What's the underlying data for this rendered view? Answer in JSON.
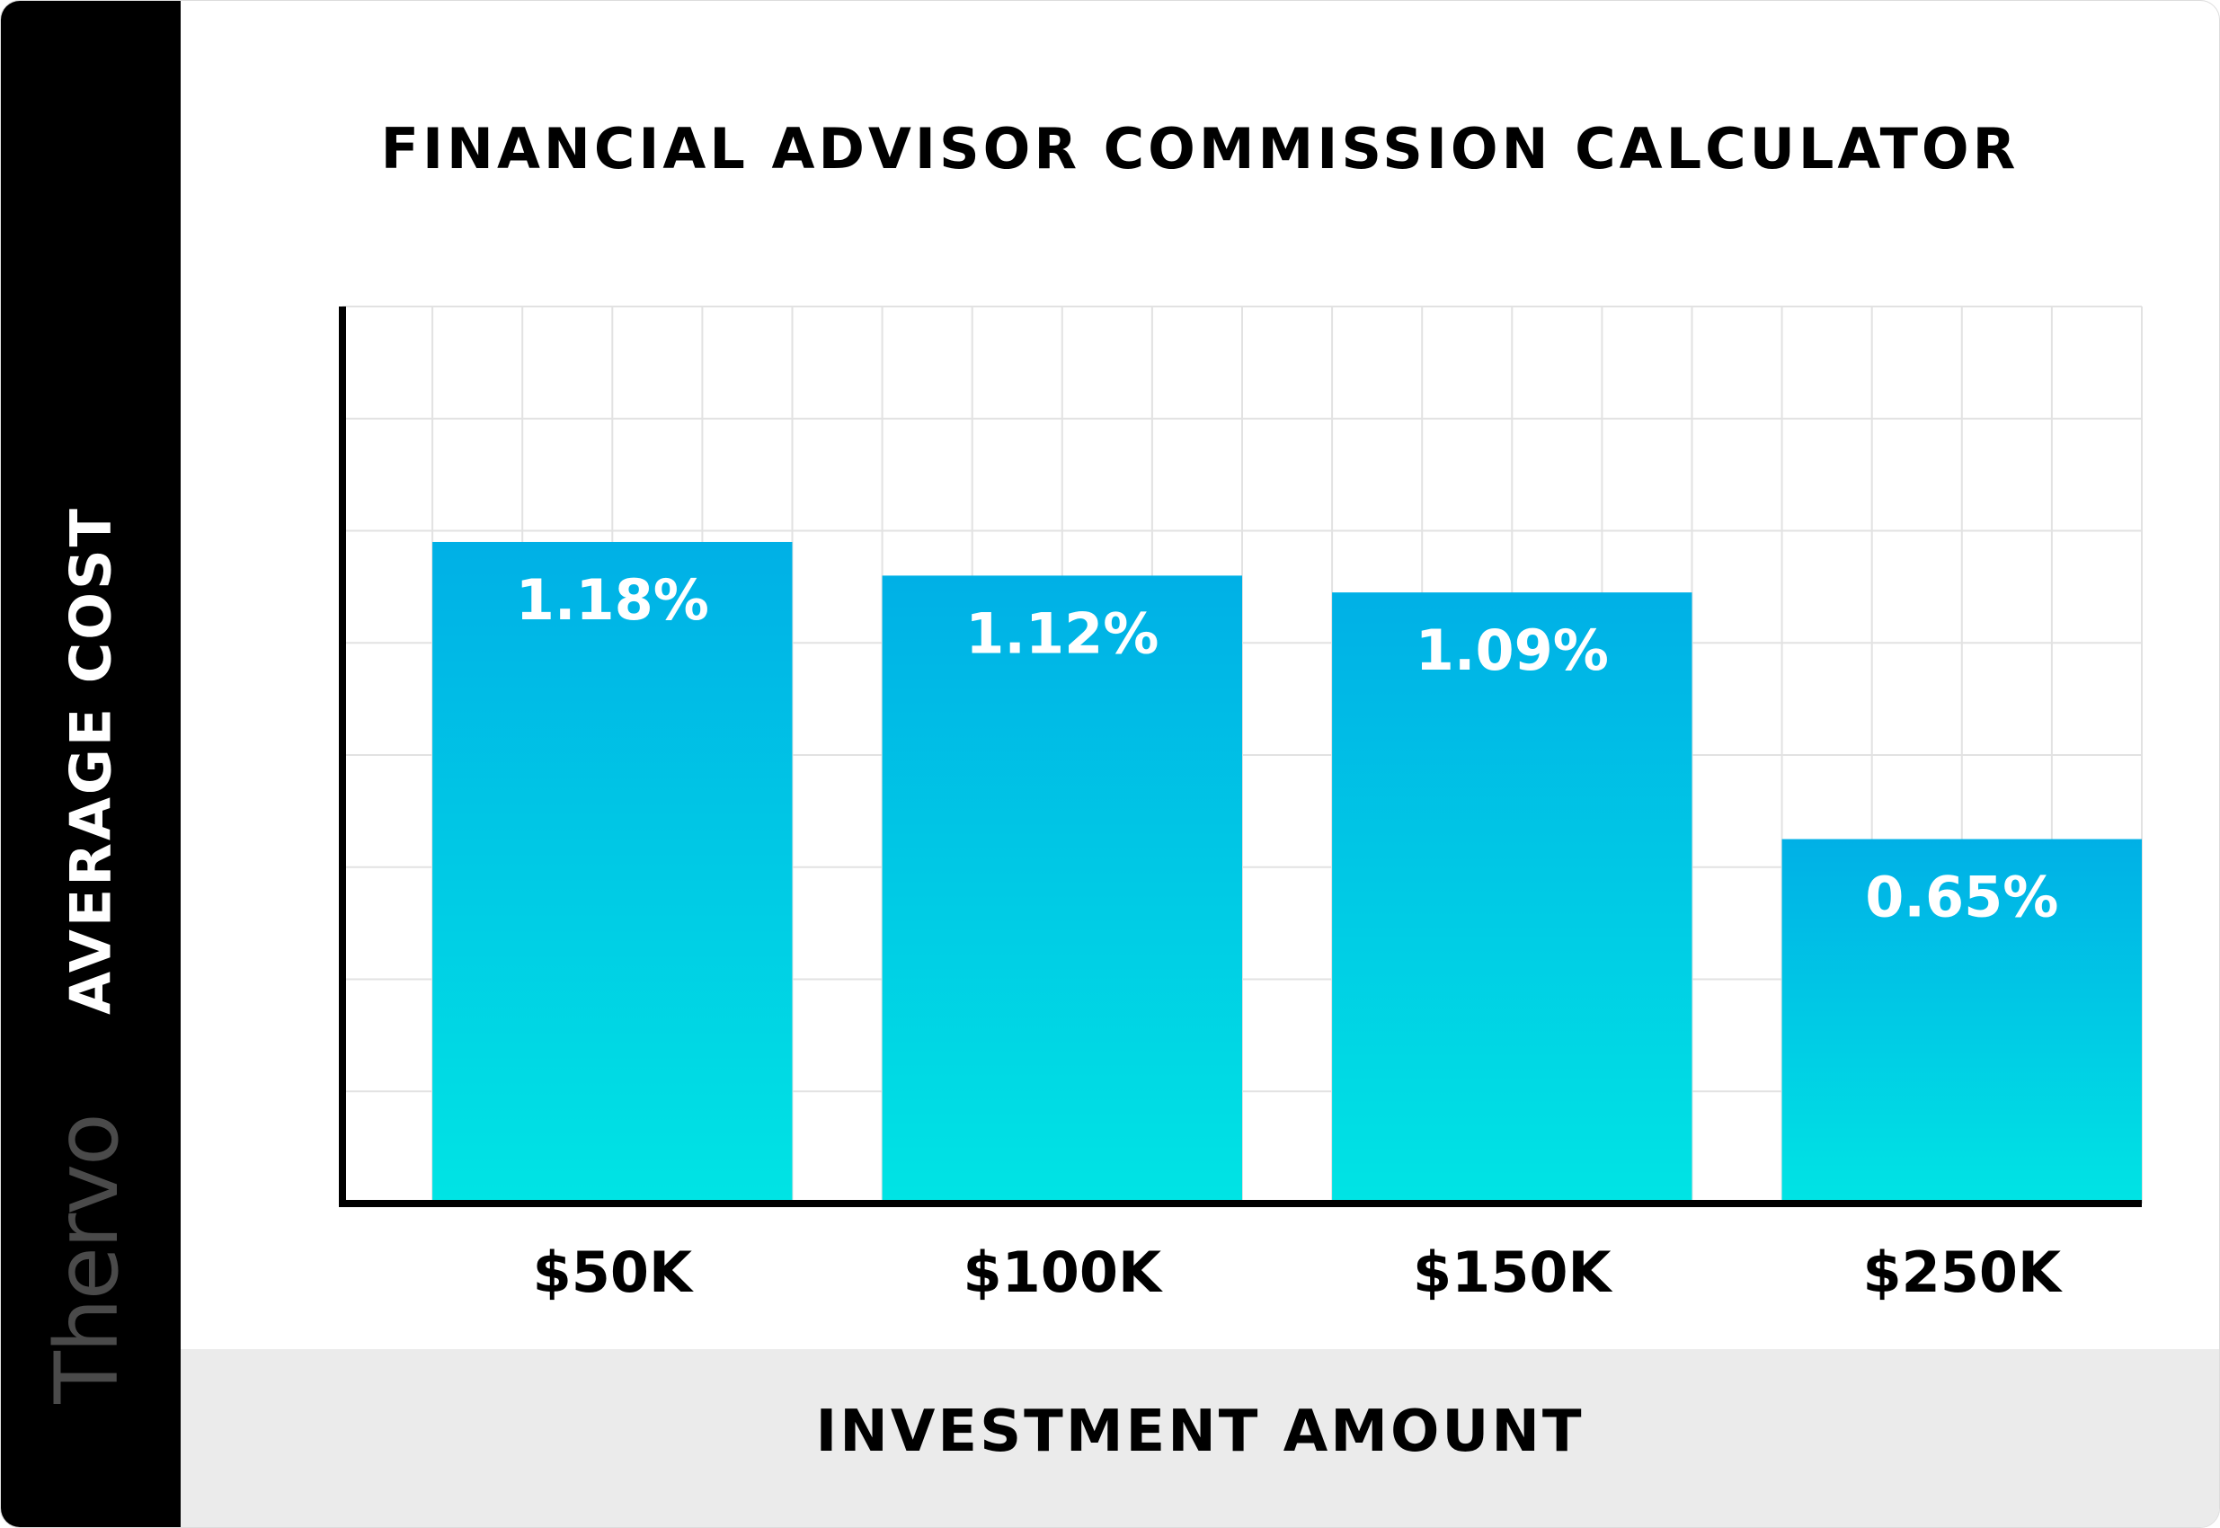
{
  "brand": "Thervo",
  "colors": {
    "bar_top": "#00b0e6",
    "bar_bottom": "#00e4e4",
    "grid": "#e2e2e2",
    "axis": "#000000",
    "side_strip": "#000000",
    "footer_band": "#ebebeb"
  },
  "chart_data": {
    "type": "bar",
    "title": "FINANCIAL ADVISOR COMMISSION CALCULATOR",
    "xlabel": "INVESTMENT AMOUNT",
    "ylabel": "AVERAGE COST",
    "categories": [
      "$50K",
      "$100K",
      "$150K",
      "$250K"
    ],
    "values": [
      1.18,
      1.12,
      1.09,
      0.65
    ],
    "value_labels": [
      "1.18%",
      "1.12%",
      "1.09%",
      "0.65%"
    ],
    "ylim": [
      0,
      1.6
    ],
    "grid": true,
    "legend": "none"
  }
}
